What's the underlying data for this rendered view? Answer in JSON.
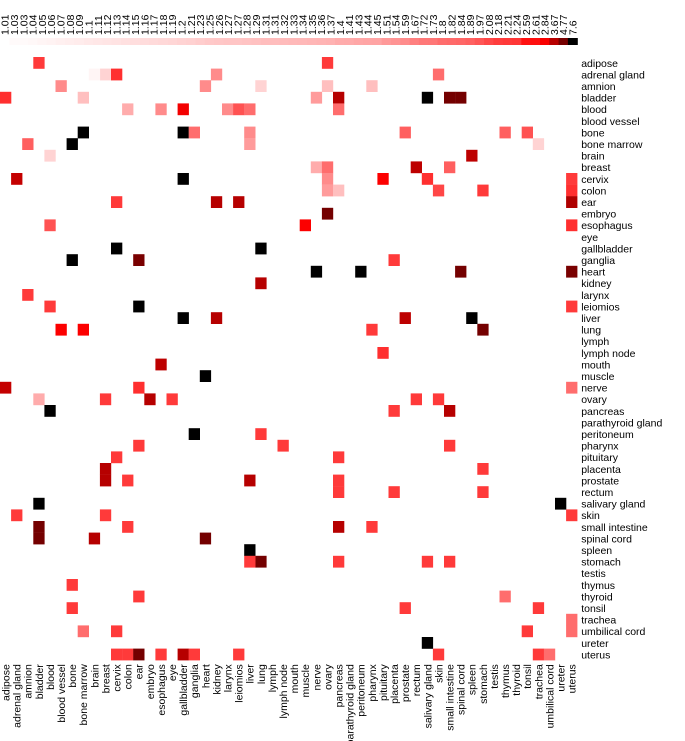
{
  "chart_data": {
    "type": "heatmap",
    "title": "",
    "xlabel": "",
    "ylabel": "",
    "colorbar": {
      "tick_labels": [
        "1.01",
        "1.03",
        "1.03",
        "1.04",
        "1.05",
        "1.06",
        "1.07",
        "1.08",
        "1.09",
        "1.1",
        "1.11",
        "1.12",
        "1.13",
        "1.14",
        "1.15",
        "1.16",
        "1.17",
        "1.18",
        "1.19",
        "1.2",
        "1.21",
        "1.23",
        "1.25",
        "1.26",
        "1.27",
        "1.27",
        "1.28",
        "1.29",
        "1.31",
        "1.31",
        "1.32",
        "1.33",
        "1.34",
        "1.35",
        "1.36",
        "1.37",
        "1.4",
        "1.41",
        "1.43",
        "1.44",
        "1.45",
        "1.51",
        "1.54",
        "1.59",
        "1.67",
        "1.72",
        "1.73",
        "1.8",
        "1.82",
        "1.84",
        "1.89",
        "1.97",
        "2.08",
        "2.18",
        "2.21",
        "2.24",
        "2.59",
        "2.61",
        "2.84",
        "3.67",
        "4.77",
        "7.6"
      ],
      "min": 1.01,
      "max": 7.6,
      "low_color": "#ffffff",
      "mid_color": "#ff0000",
      "high_color": "#000000"
    },
    "x_categories": [
      "adipose",
      "adrenal gland",
      "amnion",
      "bladder",
      "blood",
      "blood vessel",
      "bone",
      "bone marrow",
      "brain",
      "breast",
      "cervix",
      "colon",
      "ear",
      "embryo",
      "esophagus",
      "eye",
      "gallbladder",
      "ganglia",
      "heart",
      "kidney",
      "larynx",
      "leiomios",
      "liver",
      "lung",
      "lymph",
      "lymph node",
      "mouth",
      "muscle",
      "nerve",
      "ovary",
      "pancreas",
      "parathyroid gland",
      "peritoneum",
      "pharynx",
      "pituitary",
      "placenta",
      "prostate",
      "rectum",
      "salivary gland",
      "skin",
      "small intestine",
      "spinal cord",
      "spleen",
      "stomach",
      "testis",
      "thymus",
      "thyroid",
      "tonsil",
      "trachea",
      "umbilical cord",
      "ureter",
      "uterus"
    ],
    "y_categories": [
      "adipose",
      "adrenal gland",
      "amnion",
      "bladder",
      "blood",
      "blood vessel",
      "bone",
      "bone marrow",
      "brain",
      "breast",
      "cervix",
      "colon",
      "ear",
      "embryo",
      "esophagus",
      "eye",
      "gallbladder",
      "ganglia",
      "heart",
      "kidney",
      "larynx",
      "leiomios",
      "liver",
      "lung",
      "lymph",
      "lymph node",
      "mouth",
      "muscle",
      "nerve",
      "ovary",
      "pancreas",
      "parathyroid gland",
      "peritoneum",
      "pharynx",
      "pituitary",
      "placenta",
      "prostate",
      "rectum",
      "salivary gland",
      "skin",
      "small intestine",
      "spinal cord",
      "spleen",
      "stomach",
      "testis",
      "thymus",
      "thyroid",
      "tonsil",
      "trachea",
      "umbilical cord",
      "ureter",
      "uterus"
    ],
    "cells": [
      {
        "row": "adipose",
        "col": "bladder",
        "value": 2.2
      },
      {
        "row": "adipose",
        "col": "ovary",
        "value": 2.2
      },
      {
        "row": "adrenal gland",
        "col": "breast",
        "value": 1.2
      },
      {
        "row": "adrenal gland",
        "col": "brain",
        "value": 1.05
      },
      {
        "row": "adrenal gland",
        "col": "cervix",
        "value": 2.3
      },
      {
        "row": "adrenal gland",
        "col": "kidney",
        "value": 1.6
      },
      {
        "row": "adrenal gland",
        "col": "skin",
        "value": 1.8
      },
      {
        "row": "amnion",
        "col": "blood vessel",
        "value": 1.6
      },
      {
        "row": "amnion",
        "col": "heart",
        "value": 1.6
      },
      {
        "row": "amnion",
        "col": "lung",
        "value": 1.2
      },
      {
        "row": "amnion",
        "col": "ovary",
        "value": 1.3
      },
      {
        "row": "amnion",
        "col": "pharynx",
        "value": 1.3
      },
      {
        "row": "bladder",
        "col": "adipose",
        "value": 2.3
      },
      {
        "row": "bladder",
        "col": "bone marrow",
        "value": 1.3
      },
      {
        "row": "bladder",
        "col": "nerve",
        "value": 1.5
      },
      {
        "row": "bladder",
        "col": "pancreas",
        "value": 3.7
      },
      {
        "row": "bladder",
        "col": "salivary gland",
        "value": 7.6
      },
      {
        "row": "bladder",
        "col": "small intestine",
        "value": 4.8
      },
      {
        "row": "bladder",
        "col": "spinal cord",
        "value": 4.8
      },
      {
        "row": "blood",
        "col": "colon",
        "value": 1.4
      },
      {
        "row": "blood",
        "col": "esophagus",
        "value": 1.6
      },
      {
        "row": "blood",
        "col": "gallbladder",
        "value": 2.9
      },
      {
        "row": "blood",
        "col": "larynx",
        "value": 1.6
      },
      {
        "row": "blood",
        "col": "leiomios",
        "value": 2.0
      },
      {
        "row": "blood",
        "col": "liver",
        "value": 1.8
      },
      {
        "row": "blood",
        "col": "pancreas",
        "value": 1.8
      },
      {
        "row": "bone",
        "col": "bone marrow",
        "value": 7.6
      },
      {
        "row": "bone",
        "col": "gallbladder",
        "value": 7.6
      },
      {
        "row": "bone",
        "col": "ganglia",
        "value": 1.8
      },
      {
        "row": "bone",
        "col": "liver",
        "value": 1.6
      },
      {
        "row": "bone",
        "col": "prostate",
        "value": 1.9
      },
      {
        "row": "bone",
        "col": "thymus",
        "value": 1.9
      },
      {
        "row": "bone",
        "col": "tonsil",
        "value": 2.0
      },
      {
        "row": "bone marrow",
        "col": "amnion",
        "value": 1.9
      },
      {
        "row": "bone marrow",
        "col": "bone",
        "value": 7.6
      },
      {
        "row": "bone marrow",
        "col": "liver",
        "value": 1.5
      },
      {
        "row": "bone marrow",
        "col": "trachea",
        "value": 1.2
      },
      {
        "row": "brain",
        "col": "blood",
        "value": 1.2
      },
      {
        "row": "brain",
        "col": "spleen",
        "value": 3.6
      },
      {
        "row": "breast",
        "col": "nerve",
        "value": 1.4
      },
      {
        "row": "breast",
        "col": "ovary",
        "value": 1.8
      },
      {
        "row": "breast",
        "col": "rectum",
        "value": 3.6
      },
      {
        "row": "breast",
        "col": "small intestine",
        "value": 1.9
      },
      {
        "row": "cervix",
        "col": "adrenal gland",
        "value": 3.5
      },
      {
        "row": "cervix",
        "col": "gallbladder",
        "value": 7.6
      },
      {
        "row": "cervix",
        "col": "ovary",
        "value": 1.6
      },
      {
        "row": "cervix",
        "col": "pituitary",
        "value": 2.8
      },
      {
        "row": "cervix",
        "col": "salivary gland",
        "value": 2.3
      },
      {
        "row": "cervix",
        "col": "uterus",
        "value": 2.2
      },
      {
        "row": "colon",
        "col": "ovary",
        "value": 1.5
      },
      {
        "row": "colon",
        "col": "pancreas",
        "value": 1.3
      },
      {
        "row": "colon",
        "col": "skin",
        "value": 2.1
      },
      {
        "row": "colon",
        "col": "stomach",
        "value": 2.2
      },
      {
        "row": "colon",
        "col": "uterus",
        "value": 2.3
      },
      {
        "row": "ear",
        "col": "cervix",
        "value": 2.2
      },
      {
        "row": "ear",
        "col": "kidney",
        "value": 3.7
      },
      {
        "row": "ear",
        "col": "leiomios",
        "value": 3.7
      },
      {
        "row": "ear",
        "col": "uterus",
        "value": 3.8
      },
      {
        "row": "embryo",
        "col": "ovary",
        "value": 4.8
      },
      {
        "row": "esophagus",
        "col": "blood",
        "value": 2.0
      },
      {
        "row": "esophagus",
        "col": "muscle",
        "value": 2.8
      },
      {
        "row": "esophagus",
        "col": "uterus",
        "value": 2.3
      },
      {
        "row": "gallbladder",
        "col": "cervix",
        "value": 7.6
      },
      {
        "row": "gallbladder",
        "col": "lung",
        "value": 7.6
      },
      {
        "row": "ganglia",
        "col": "bone",
        "value": 7.6
      },
      {
        "row": "ganglia",
        "col": "ear",
        "value": 4.7
      },
      {
        "row": "ganglia",
        "col": "placenta",
        "value": 2.2
      },
      {
        "row": "heart",
        "col": "nerve",
        "value": 7.6
      },
      {
        "row": "heart",
        "col": "peritoneum",
        "value": 7.6
      },
      {
        "row": "heart",
        "col": "spinal cord",
        "value": 4.8
      },
      {
        "row": "heart",
        "col": "uterus",
        "value": 4.7
      },
      {
        "row": "kidney",
        "col": "lung",
        "value": 3.7
      },
      {
        "row": "larynx",
        "col": "amnion",
        "value": 2.2
      },
      {
        "row": "leiomios",
        "col": "blood",
        "value": 2.2
      },
      {
        "row": "leiomios",
        "col": "ear",
        "value": 7.6
      },
      {
        "row": "leiomios",
        "col": "uterus",
        "value": 2.2
      },
      {
        "row": "liver",
        "col": "gallbladder",
        "value": 7.6
      },
      {
        "row": "liver",
        "col": "kidney",
        "value": 3.7
      },
      {
        "row": "liver",
        "col": "prostate",
        "value": 3.6
      },
      {
        "row": "liver",
        "col": "spleen",
        "value": 7.6
      },
      {
        "row": "lung",
        "col": "blood vessel",
        "value": 2.8
      },
      {
        "row": "lung",
        "col": "bone marrow",
        "value": 2.8
      },
      {
        "row": "lung",
        "col": "pharynx",
        "value": 2.2
      },
      {
        "row": "lung",
        "col": "stomach",
        "value": 4.8
      },
      {
        "row": "lymph node",
        "col": "pituitary",
        "value": 2.3
      },
      {
        "row": "mouth",
        "col": "esophagus",
        "value": 3.6
      },
      {
        "row": "muscle",
        "col": "heart",
        "value": 7.6
      },
      {
        "row": "nerve",
        "col": "adipose",
        "value": 3.5
      },
      {
        "row": "nerve",
        "col": "ear",
        "value": 2.3
      },
      {
        "row": "nerve",
        "col": "uterus",
        "value": 1.8
      },
      {
        "row": "ovary",
        "col": "bladder",
        "value": 1.4
      },
      {
        "row": "ovary",
        "col": "breast",
        "value": 2.2
      },
      {
        "row": "ovary",
        "col": "embryo",
        "value": 3.7
      },
      {
        "row": "ovary",
        "col": "eye",
        "value": 2.2
      },
      {
        "row": "ovary",
        "col": "rectum",
        "value": 2.2
      },
      {
        "row": "ovary",
        "col": "skin",
        "value": 2.2
      },
      {
        "row": "pancreas",
        "col": "blood",
        "value": 7.6
      },
      {
        "row": "pancreas",
        "col": "placenta",
        "value": 2.2
      },
      {
        "row": "pancreas",
        "col": "small intestine",
        "value": 3.7
      },
      {
        "row": "peritoneum",
        "col": "ganglia",
        "value": 7.6
      },
      {
        "row": "peritoneum",
        "col": "lung",
        "value": 2.2
      },
      {
        "row": "pharynx",
        "col": "ear",
        "value": 2.2
      },
      {
        "row": "pharynx",
        "col": "lymph node",
        "value": 2.2
      },
      {
        "row": "pharynx",
        "col": "small intestine",
        "value": 2.2
      },
      {
        "row": "pituitary",
        "col": "cervix",
        "value": 2.2
      },
      {
        "row": "pituitary",
        "col": "pancreas",
        "value": 2.2
      },
      {
        "row": "placenta",
        "col": "breast",
        "value": 3.7
      },
      {
        "row": "placenta",
        "col": "stomach",
        "value": 2.2
      },
      {
        "row": "prostate",
        "col": "breast",
        "value": 3.7
      },
      {
        "row": "prostate",
        "col": "colon",
        "value": 2.2
      },
      {
        "row": "prostate",
        "col": "liver",
        "value": 3.7
      },
      {
        "row": "prostate",
        "col": "pancreas",
        "value": 2.2
      },
      {
        "row": "rectum",
        "col": "pancreas",
        "value": 2.2
      },
      {
        "row": "rectum",
        "col": "placenta",
        "value": 2.2
      },
      {
        "row": "rectum",
        "col": "stomach",
        "value": 2.2
      },
      {
        "row": "salivary gland",
        "col": "bladder",
        "value": 7.6
      },
      {
        "row": "salivary gland",
        "col": "ureter",
        "value": 7.6
      },
      {
        "row": "skin",
        "col": "adrenal gland",
        "value": 2.2
      },
      {
        "row": "skin",
        "col": "breast",
        "value": 2.2
      },
      {
        "row": "skin",
        "col": "uterus",
        "value": 2.2
      },
      {
        "row": "small intestine",
        "col": "bladder",
        "value": 4.8
      },
      {
        "row": "small intestine",
        "col": "colon",
        "value": 2.2
      },
      {
        "row": "small intestine",
        "col": "pancreas",
        "value": 3.7
      },
      {
        "row": "small intestine",
        "col": "pharynx",
        "value": 2.2
      },
      {
        "row": "spinal cord",
        "col": "bladder",
        "value": 4.8
      },
      {
        "row": "spinal cord",
        "col": "brain",
        "value": 3.7
      },
      {
        "row": "spinal cord",
        "col": "heart",
        "value": 4.8
      },
      {
        "row": "spleen",
        "col": "liver",
        "value": 7.6
      },
      {
        "row": "stomach",
        "col": "lung",
        "value": 4.8
      },
      {
        "row": "stomach",
        "col": "liver",
        "value": 2.2
      },
      {
        "row": "stomach",
        "col": "pancreas",
        "value": 2.2
      },
      {
        "row": "stomach",
        "col": "salivary gland",
        "value": 2.2
      },
      {
        "row": "stomach",
        "col": "small intestine",
        "value": 2.2
      },
      {
        "row": "thymus",
        "col": "bone",
        "value": 2.2
      },
      {
        "row": "thyroid",
        "col": "ear",
        "value": 2.2
      },
      {
        "row": "thyroid",
        "col": "thymus",
        "value": 1.8
      },
      {
        "row": "tonsil",
        "col": "bone",
        "value": 2.2
      },
      {
        "row": "tonsil",
        "col": "prostate",
        "value": 2.2
      },
      {
        "row": "tonsil",
        "col": "trachea",
        "value": 2.2
      },
      {
        "row": "trachea",
        "col": "uterus",
        "value": 1.8
      },
      {
        "row": "umbilical cord",
        "col": "bone marrow",
        "value": 1.8
      },
      {
        "row": "umbilical cord",
        "col": "cervix",
        "value": 2.2
      },
      {
        "row": "umbilical cord",
        "col": "tonsil",
        "value": 2.2
      },
      {
        "row": "umbilical cord",
        "col": "uterus",
        "value": 1.8
      },
      {
        "row": "ureter",
        "col": "salivary gland",
        "value": 7.6
      },
      {
        "row": "uterus",
        "col": "cervix",
        "value": 2.2
      },
      {
        "row": "uterus",
        "col": "colon",
        "value": 2.2
      },
      {
        "row": "uterus",
        "col": "ear",
        "value": 4.8
      },
      {
        "row": "uterus",
        "col": "esophagus",
        "value": 2.2
      },
      {
        "row": "uterus",
        "col": "gallbladder",
        "value": 3.7
      },
      {
        "row": "uterus",
        "col": "ganglia",
        "value": 2.2
      },
      {
        "row": "uterus",
        "col": "leiomios",
        "value": 2.2
      },
      {
        "row": "uterus",
        "col": "skin",
        "value": 2.2
      },
      {
        "row": "uterus",
        "col": "trachea",
        "value": 2.2
      },
      {
        "row": "uterus",
        "col": "umbilical cord",
        "value": 1.8
      }
    ]
  }
}
